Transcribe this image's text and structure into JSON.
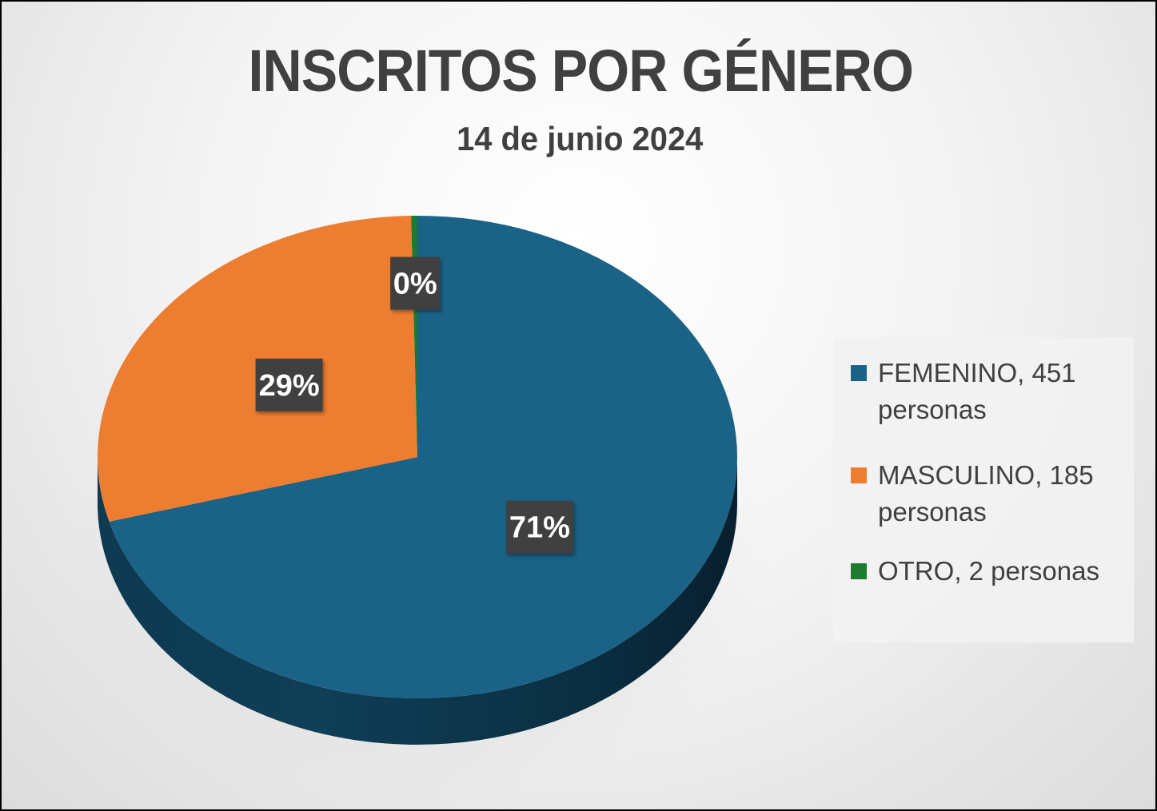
{
  "chart_data": {
    "type": "pie",
    "title": "INSCRITOS POR GÉNERO",
    "subtitle": "14 de junio 2024",
    "categories": [
      "FEMENINO",
      "MASCULINO",
      "OTRO"
    ],
    "values": [
      451,
      185,
      2
    ],
    "data_labels": [
      "71%",
      "29%",
      "0%"
    ],
    "legend": {
      "placement": "right",
      "entries": [
        "FEMENINO,  451 personas",
        "MASCULINO, 185 personas",
        "OTRO, 2 personas"
      ]
    },
    "colors": [
      "#1a6286",
      "#ed7d31",
      "#1e7a30"
    ],
    "style": "3d"
  }
}
